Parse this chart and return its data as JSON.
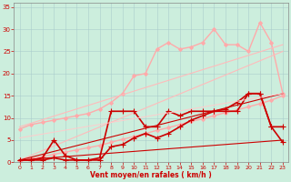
{
  "title": "",
  "xlabel": "Vent moyen/en rafales ( km/h )",
  "ylabel": "",
  "xlim": [
    -0.5,
    23.5
  ],
  "ylim": [
    0,
    36
  ],
  "yticks": [
    0,
    5,
    10,
    15,
    20,
    25,
    30,
    35
  ],
  "xticks": [
    0,
    1,
    2,
    3,
    4,
    5,
    6,
    7,
    8,
    9,
    10,
    11,
    12,
    13,
    14,
    15,
    16,
    17,
    18,
    19,
    20,
    21,
    22,
    23
  ],
  "bg_color": "#cceedd",
  "grid_color": "#aacccc",
  "lines": [
    {
      "x": [
        0,
        1,
        2,
        3,
        4,
        5,
        6,
        7,
        8,
        9,
        10,
        11,
        12,
        13,
        14,
        15,
        16,
        17,
        18,
        19,
        20,
        21,
        22,
        23
      ],
      "y": [
        0.3,
        0.8,
        1.3,
        1.8,
        2.3,
        2.8,
        3.3,
        3.8,
        4.5,
        5.2,
        5.8,
        6.5,
        7.2,
        7.8,
        8.5,
        9.2,
        9.8,
        10.5,
        11.2,
        11.8,
        12.5,
        13.2,
        14.0,
        15.0
      ],
      "color": "#ffaaaa",
      "lw": 1.0,
      "marker": "D",
      "ms": 2.0
    },
    {
      "x": [
        0,
        1,
        2,
        3,
        4,
        5,
        6,
        7,
        8,
        9,
        10,
        11,
        12,
        13,
        14,
        15,
        16,
        17,
        18,
        19,
        20,
        21,
        22,
        23
      ],
      "y": [
        7.5,
        8.5,
        9.0,
        9.5,
        10.0,
        10.5,
        11.0,
        12.0,
        13.5,
        15.5,
        19.5,
        20.0,
        25.5,
        27.0,
        25.5,
        26.0,
        27.0,
        30.0,
        26.5,
        26.5,
        25.0,
        31.5,
        27.0,
        15.5
      ],
      "color": "#ffaaaa",
      "lw": 1.0,
      "marker": "D",
      "ms": 2.0
    },
    {
      "x": [
        0,
        23
      ],
      "y": [
        0.5,
        25.0
      ],
      "color": "#ffbbbb",
      "lw": 0.8,
      "marker": null,
      "ms": 0
    },
    {
      "x": [
        0,
        23
      ],
      "y": [
        8.0,
        26.5
      ],
      "color": "#ffbbbb",
      "lw": 0.8,
      "marker": null,
      "ms": 0
    },
    {
      "x": [
        0,
        1,
        2,
        3,
        4,
        5,
        6,
        7,
        8,
        9,
        10,
        11,
        12,
        13,
        14,
        15,
        16,
        17,
        18,
        19,
        20,
        21,
        22,
        23
      ],
      "y": [
        0.5,
        0.5,
        1.0,
        5.0,
        1.5,
        0.5,
        0.5,
        1.0,
        11.5,
        11.5,
        11.5,
        8.0,
        8.0,
        11.5,
        10.5,
        11.5,
        11.5,
        11.5,
        11.5,
        11.5,
        15.5,
        15.5,
        8.0,
        8.0
      ],
      "color": "#cc0000",
      "lw": 1.2,
      "marker": "+",
      "ms": 4
    },
    {
      "x": [
        0,
        1,
        2,
        3,
        4,
        5,
        6,
        7,
        8,
        9,
        10,
        11,
        12,
        13,
        14,
        15,
        16,
        17,
        18,
        19,
        20,
        21,
        22,
        23
      ],
      "y": [
        0.5,
        0.5,
        0.5,
        1.0,
        0.5,
        0.5,
        0.5,
        0.5,
        3.5,
        4.0,
        5.5,
        6.5,
        5.5,
        6.5,
        8.0,
        9.5,
        10.5,
        11.5,
        12.0,
        13.5,
        15.5,
        15.5,
        8.0,
        4.5
      ],
      "color": "#cc0000",
      "lw": 1.2,
      "marker": "+",
      "ms": 4
    },
    {
      "x": [
        0,
        23
      ],
      "y": [
        0.5,
        15.5
      ],
      "color": "#cc0000",
      "lw": 0.8,
      "marker": null,
      "ms": 0
    },
    {
      "x": [
        0,
        23
      ],
      "y": [
        0.5,
        5.0
      ],
      "color": "#cc0000",
      "lw": 0.8,
      "marker": null,
      "ms": 0
    },
    {
      "x": [
        0,
        23
      ],
      "y": [
        5.5,
        15.5
      ],
      "color": "#ffcccc",
      "lw": 0.7,
      "marker": null,
      "ms": 0
    }
  ]
}
